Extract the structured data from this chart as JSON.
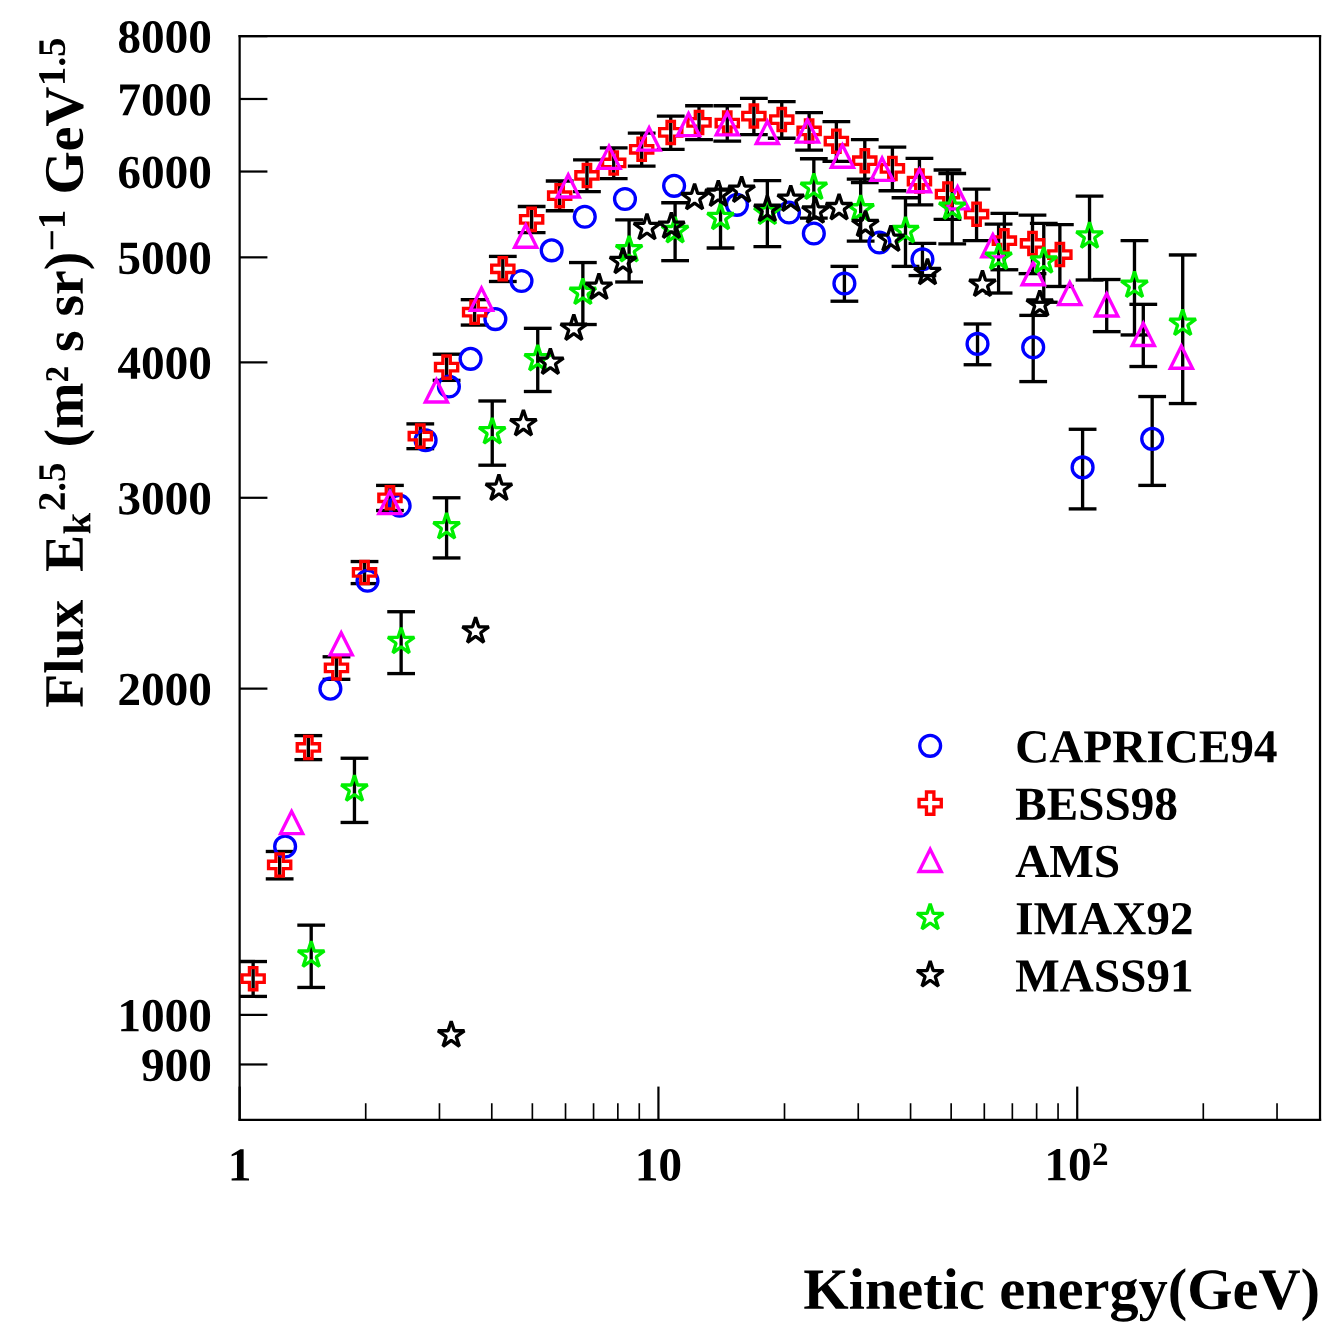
{
  "chart_data": {
    "type": "scatter",
    "xlabel": "Kinetic energy(GeV)",
    "ylabel": "Flux  E$_{k}$$^{2.5}$ (m² s sr)$^{−1}$ GeV$^{1.5}$",
    "log": "xy",
    "grid": false,
    "legend": "bottom right",
    "xlim": [
      1,
      380
    ],
    "xticks": [
      1,
      10,
      {
        "value": 100,
        "label": "10$^{2}$"
      }
    ],
    "ylim": [
      800,
      8000
    ],
    "yticks": [
      900,
      1000,
      2000,
      3000,
      4000,
      5000,
      6000,
      7000,
      8000
    ],
    "series": [
      {
        "name": "CAPRICE94",
        "color": "#0000ff",
        "marker": "circle",
        "x": [
          1.284,
          1.647,
          2.02,
          2.41,
          2.78,
          3.16,
          3.56,
          4.08,
          4.71,
          5.56,
          6.67,
          8.32,
          10.9,
          15.4,
          20.5,
          23.5,
          27.8,
          33.7,
          42.7,
          57.8,
          78.5,
          103,
          151
        ],
        "values": [
          1430,
          2000,
          2515,
          2950,
          3390,
          3800,
          4030,
          4385,
          4755,
          5075,
          5450,
          5660,
          5820,
          5590,
          5500,
          5260,
          4730,
          5160,
          4980,
          4160,
          4130,
          3200,
          3400
        ],
        "errors": [
          null,
          null,
          null,
          null,
          null,
          null,
          null,
          null,
          null,
          null,
          null,
          null,
          null,
          null,
          null,
          null,
          175,
          null,
          170,
          180,
          290,
          270,
          320
        ]
      },
      {
        "name": "BESS98",
        "color": "#ff0000",
        "marker": "cross",
        "x": [
          1.077,
          1.246,
          1.459,
          1.703,
          1.987,
          2.285,
          2.7,
          3.12,
          3.64,
          4.25,
          4.98,
          5.81,
          6.75,
          7.82,
          9.12,
          10.7,
          12.5,
          14.6,
          16.9,
          19.7,
          22.9,
          26.6,
          31.1,
          36.2,
          42.0,
          49.0,
          57.5,
          67.0,
          78.2,
          90.9
        ],
        "values": [
          1080,
          1375,
          1765,
          2090,
          2560,
          3000,
          3420,
          3960,
          4450,
          4880,
          5420,
          5700,
          5950,
          6110,
          6290,
          6520,
          6660,
          6650,
          6750,
          6700,
          6540,
          6400,
          6140,
          6040,
          5880,
          5720,
          5480,
          5180,
          5150,
          5030
        ],
        "errors": [
          40,
          40,
          45,
          50,
          60,
          80,
          90,
          110,
          120,
          130,
          150,
          180,
          200,
          200,
          220,
          230,
          240,
          250,
          260,
          260,
          260,
          270,
          280,
          280,
          290,
          300,
          300,
          310,
          320,
          330
        ]
      },
      {
        "name": "AMS",
        "color": "#ff00ff",
        "marker": "triangle",
        "x": [
          1.331,
          1.748,
          2.285,
          2.95,
          3.78,
          4.82,
          6.09,
          7.62,
          9.5,
          11.8,
          14.6,
          18.2,
          22.7,
          27.5,
          34.2,
          42.0,
          51.8,
          62.9,
          78.5,
          96.0,
          117.6,
          143.8,
          177.3
        ],
        "values": [
          1505,
          2200,
          2970,
          3765,
          4575,
          5230,
          5820,
          6185,
          6430,
          6630,
          6640,
          6520,
          6540,
          6200,
          6030,
          5885,
          5675,
          5125,
          4830,
          4630,
          4520,
          4245,
          4045
        ],
        "errors": [
          null,
          null,
          null,
          null,
          null,
          null,
          null,
          null,
          null,
          null,
          null,
          null,
          null,
          null,
          null,
          null,
          null,
          null,
          null,
          null,
          250,
          280,
          null
        ]
      },
      {
        "name": "IMAX92",
        "color": "#00ee00",
        "marker": "star",
        "x": [
          1.482,
          1.88,
          2.43,
          3.12,
          4.01,
          5.15,
          6.6,
          8.51,
          10.96,
          14.07,
          18.2,
          23.5,
          30.4,
          38.9,
          50.3,
          64.9,
          83.2,
          107,
          137,
          178.6
        ],
        "values": [
          1135,
          1615,
          2210,
          2820,
          3450,
          4030,
          4640,
          5080,
          5290,
          5440,
          5500,
          5800,
          5540,
          5290,
          5560,
          5000,
          4960,
          5230,
          4710,
          4345
        ],
        "errors": [
          75,
          110,
          145,
          180,
          235,
          270,
          305,
          335,
          325,
          340,
          385,
          365,
          365,
          385,
          415,
          365,
          415,
          465,
          470,
          680
        ]
      },
      {
        "name": "MASS91",
        "color": "#000000",
        "marker": "star",
        "x": [
          3.2,
          3.66,
          4.16,
          4.76,
          5.52,
          6.28,
          7.21,
          8.23,
          9.39,
          10.74,
          12.2,
          13.9,
          15.8,
          18.2,
          20.7,
          23.7,
          27.0,
          31.2,
          35.9,
          43.9,
          59.4,
          81.4
        ],
        "values": [
          958,
          2260,
          3060,
          3510,
          4000,
          4300,
          4690,
          4955,
          5325,
          5340,
          5675,
          5715,
          5765,
          5535,
          5655,
          5515,
          5555,
          5360,
          5195,
          4840,
          4720,
          4525
        ]
      }
    ]
  }
}
